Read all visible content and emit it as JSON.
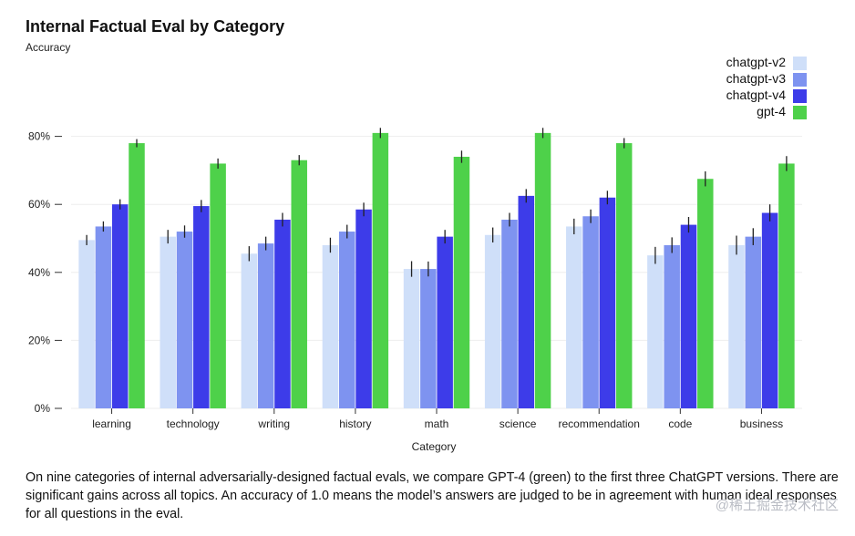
{
  "chart_data": {
    "type": "bar",
    "title": "Internal Factual Eval by Category",
    "ylabel": "Accuracy",
    "xlabel": "Category",
    "ylim": [
      0,
      100
    ],
    "yticks": [
      0,
      20,
      40,
      60,
      80
    ],
    "ytick_labels": [
      "0%",
      "20%",
      "40%",
      "60%",
      "80%"
    ],
    "categories": [
      "learning",
      "technology",
      "writing",
      "history",
      "math",
      "science",
      "recommendation",
      "code",
      "business"
    ],
    "series": [
      {
        "name": "chatgpt-v2",
        "color": "#cfdff9",
        "values": [
          49.5,
          50.5,
          45.5,
          48,
          41,
          51,
          53.5,
          45,
          48
        ],
        "error": [
          1.5,
          2,
          2.2,
          2.2,
          2.3,
          2.2,
          2.3,
          2.5,
          2.8
        ]
      },
      {
        "name": "chatgpt-v3",
        "color": "#7e93f0",
        "values": [
          53.5,
          52,
          48.5,
          52,
          41,
          55.5,
          56.5,
          48,
          50.5
        ],
        "error": [
          1.5,
          1.8,
          2,
          2,
          2.2,
          2,
          2,
          2.3,
          2.5
        ]
      },
      {
        "name": "chatgpt-v4",
        "color": "#3d3ce9",
        "values": [
          60,
          59.5,
          55.5,
          58.5,
          50.5,
          62.5,
          62,
          54,
          57.5
        ],
        "error": [
          1.5,
          1.8,
          2,
          2,
          2,
          2,
          2,
          2.3,
          2.5
        ]
      },
      {
        "name": "gpt-4",
        "color": "#4ed14a",
        "values": [
          78,
          72,
          73,
          81,
          74,
          81,
          78,
          67.5,
          72
        ],
        "error": [
          1.2,
          1.5,
          1.5,
          1.5,
          1.8,
          1.5,
          1.5,
          2.2,
          2.2
        ]
      }
    ],
    "legend_position": "top-right",
    "grid": true
  },
  "caption": "On nine categories of internal adversarially-designed factual evals, we compare GPT-4 (green) to the first three ChatGPT versions. There are significant gains across all topics. An accuracy of 1.0 means the model’s answers are judged to be in agreement with human ideal responses for all questions in the eval.",
  "watermark": "@稀土掘金技术社区"
}
